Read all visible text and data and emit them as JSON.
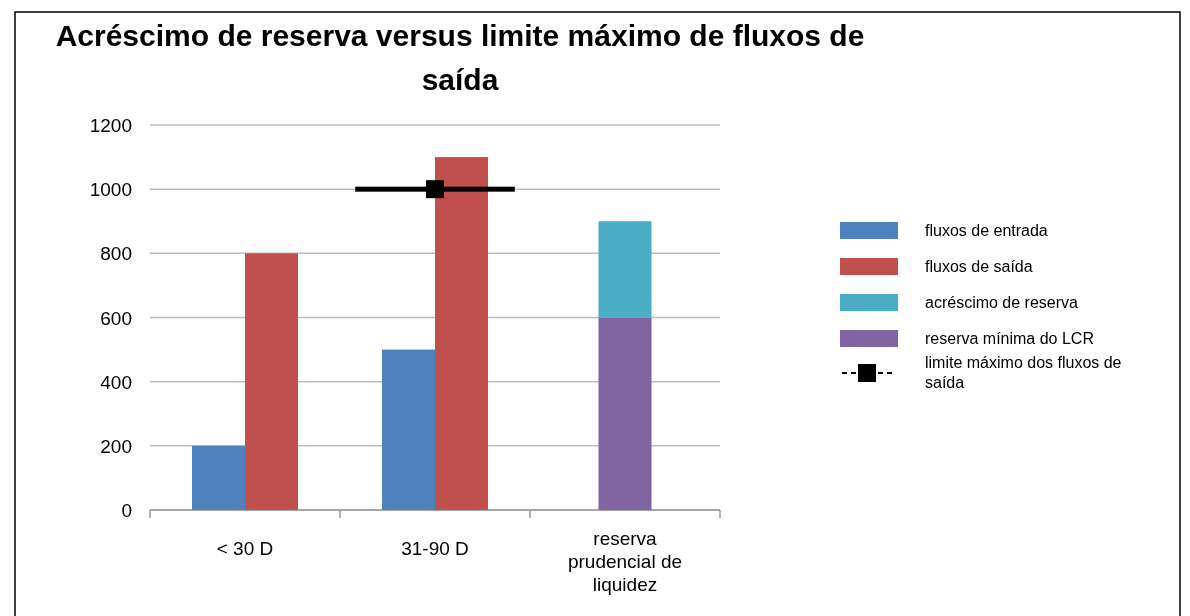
{
  "chart_data": {
    "type": "bar",
    "title": "Acréscimo de reserva versus limite máximo de fluxos de saída",
    "categories": [
      "< 30 D",
      "31-90 D",
      "reserva prudencial de liquidez"
    ],
    "series": [
      {
        "name": "fluxos de entrada",
        "color": "#4f81bd",
        "values": [
          200,
          500,
          null
        ]
      },
      {
        "name": "fluxos de saída",
        "color": "#c0504d",
        "values": [
          800,
          1100,
          null
        ]
      },
      {
        "name": "acréscimo de reserva",
        "color": "#4bacc6",
        "values": [
          null,
          null,
          300
        ],
        "base": [
          null,
          null,
          600
        ]
      },
      {
        "name": "reserva mínima do LCR",
        "color": "#8064a2",
        "values": [
          null,
          null,
          600
        ]
      },
      {
        "name": "limite máximo dos fluxos de saída",
        "type": "line",
        "color": "#000000",
        "values": [
          null,
          1000,
          null
        ],
        "marker": "square"
      }
    ],
    "ylim": [
      0,
      1200
    ],
    "yticks": [
      0,
      200,
      400,
      600,
      800,
      1000,
      1200
    ],
    "grid": "y",
    "legend": "right"
  }
}
